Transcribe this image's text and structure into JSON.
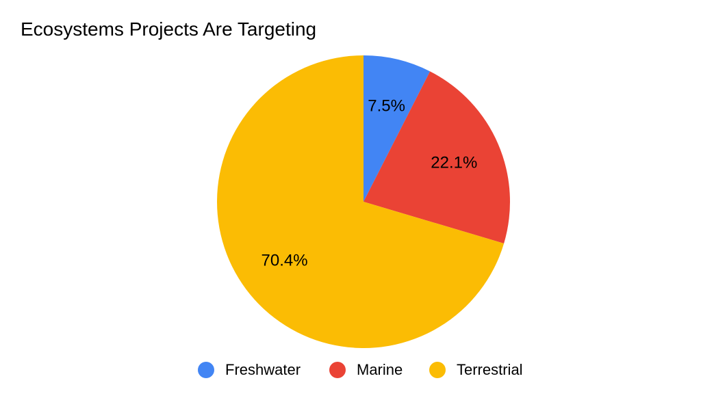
{
  "chart_data": {
    "type": "pie",
    "title": "Ecosystems Projects Are Targeting",
    "categories": [
      "Freshwater",
      "Marine",
      "Terrestrial"
    ],
    "values": [
      7.5,
      22.1,
      70.4
    ],
    "value_labels": [
      "7.5%",
      "22.1%",
      "70.4%"
    ],
    "colors": [
      "#4285F4",
      "#EA4335",
      "#FBBC04"
    ],
    "legend_position": "bottom",
    "start_angle": "12 o'clock",
    "direction": "clockwise"
  }
}
